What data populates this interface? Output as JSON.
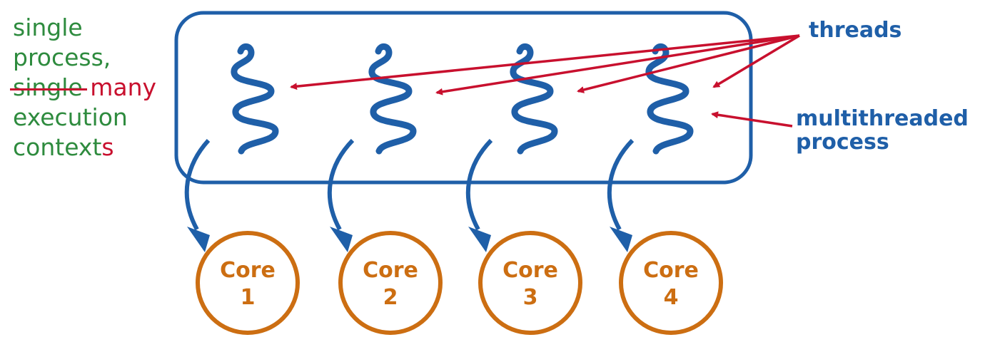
{
  "note": {
    "line1": "single",
    "line2": "process,",
    "struck_word": "single",
    "replacement_word": "many",
    "line4": "execution",
    "line5_main": "context",
    "line5_suffix": "s"
  },
  "labels": {
    "threads": "threads",
    "multithreaded_line1": "multithreaded",
    "multithreaded_line2": "process"
  },
  "cores": [
    {
      "name": "Core",
      "number": "1"
    },
    {
      "name": "Core",
      "number": "2"
    },
    {
      "name": "Core",
      "number": "3"
    },
    {
      "name": "Core",
      "number": "4"
    }
  ],
  "colors": {
    "blue": "#1f5fa8",
    "red": "#c8102e",
    "green": "#2e8b3e",
    "orange": "#cc6e12"
  }
}
